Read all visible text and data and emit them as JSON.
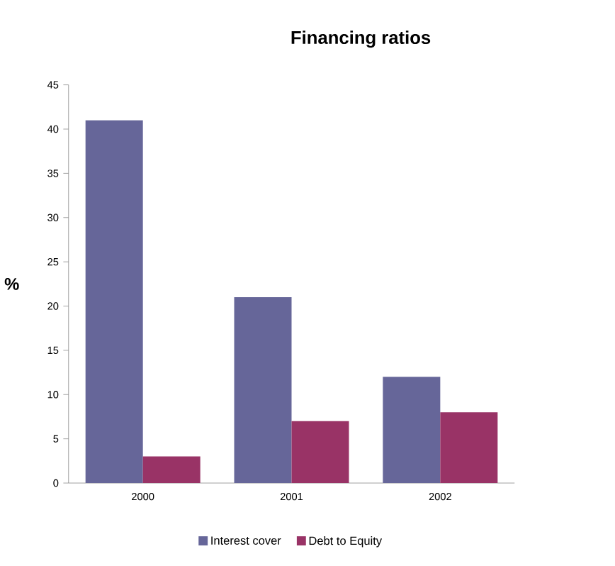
{
  "chart_data": {
    "type": "bar",
    "title": "Financing ratios",
    "ylabel": "%",
    "categories": [
      "2000",
      "2001",
      "2002"
    ],
    "series": [
      {
        "name": "Interest cover",
        "color": "#666699",
        "values": [
          41,
          21,
          12
        ]
      },
      {
        "name": "Debt to Equity",
        "color": "#993366",
        "values": [
          3,
          7,
          8
        ]
      }
    ],
    "ylim": [
      0,
      45
    ],
    "yticks": [
      0,
      5,
      10,
      15,
      20,
      25,
      30,
      35,
      40,
      45
    ],
    "grid": false,
    "legend": "bottom"
  }
}
